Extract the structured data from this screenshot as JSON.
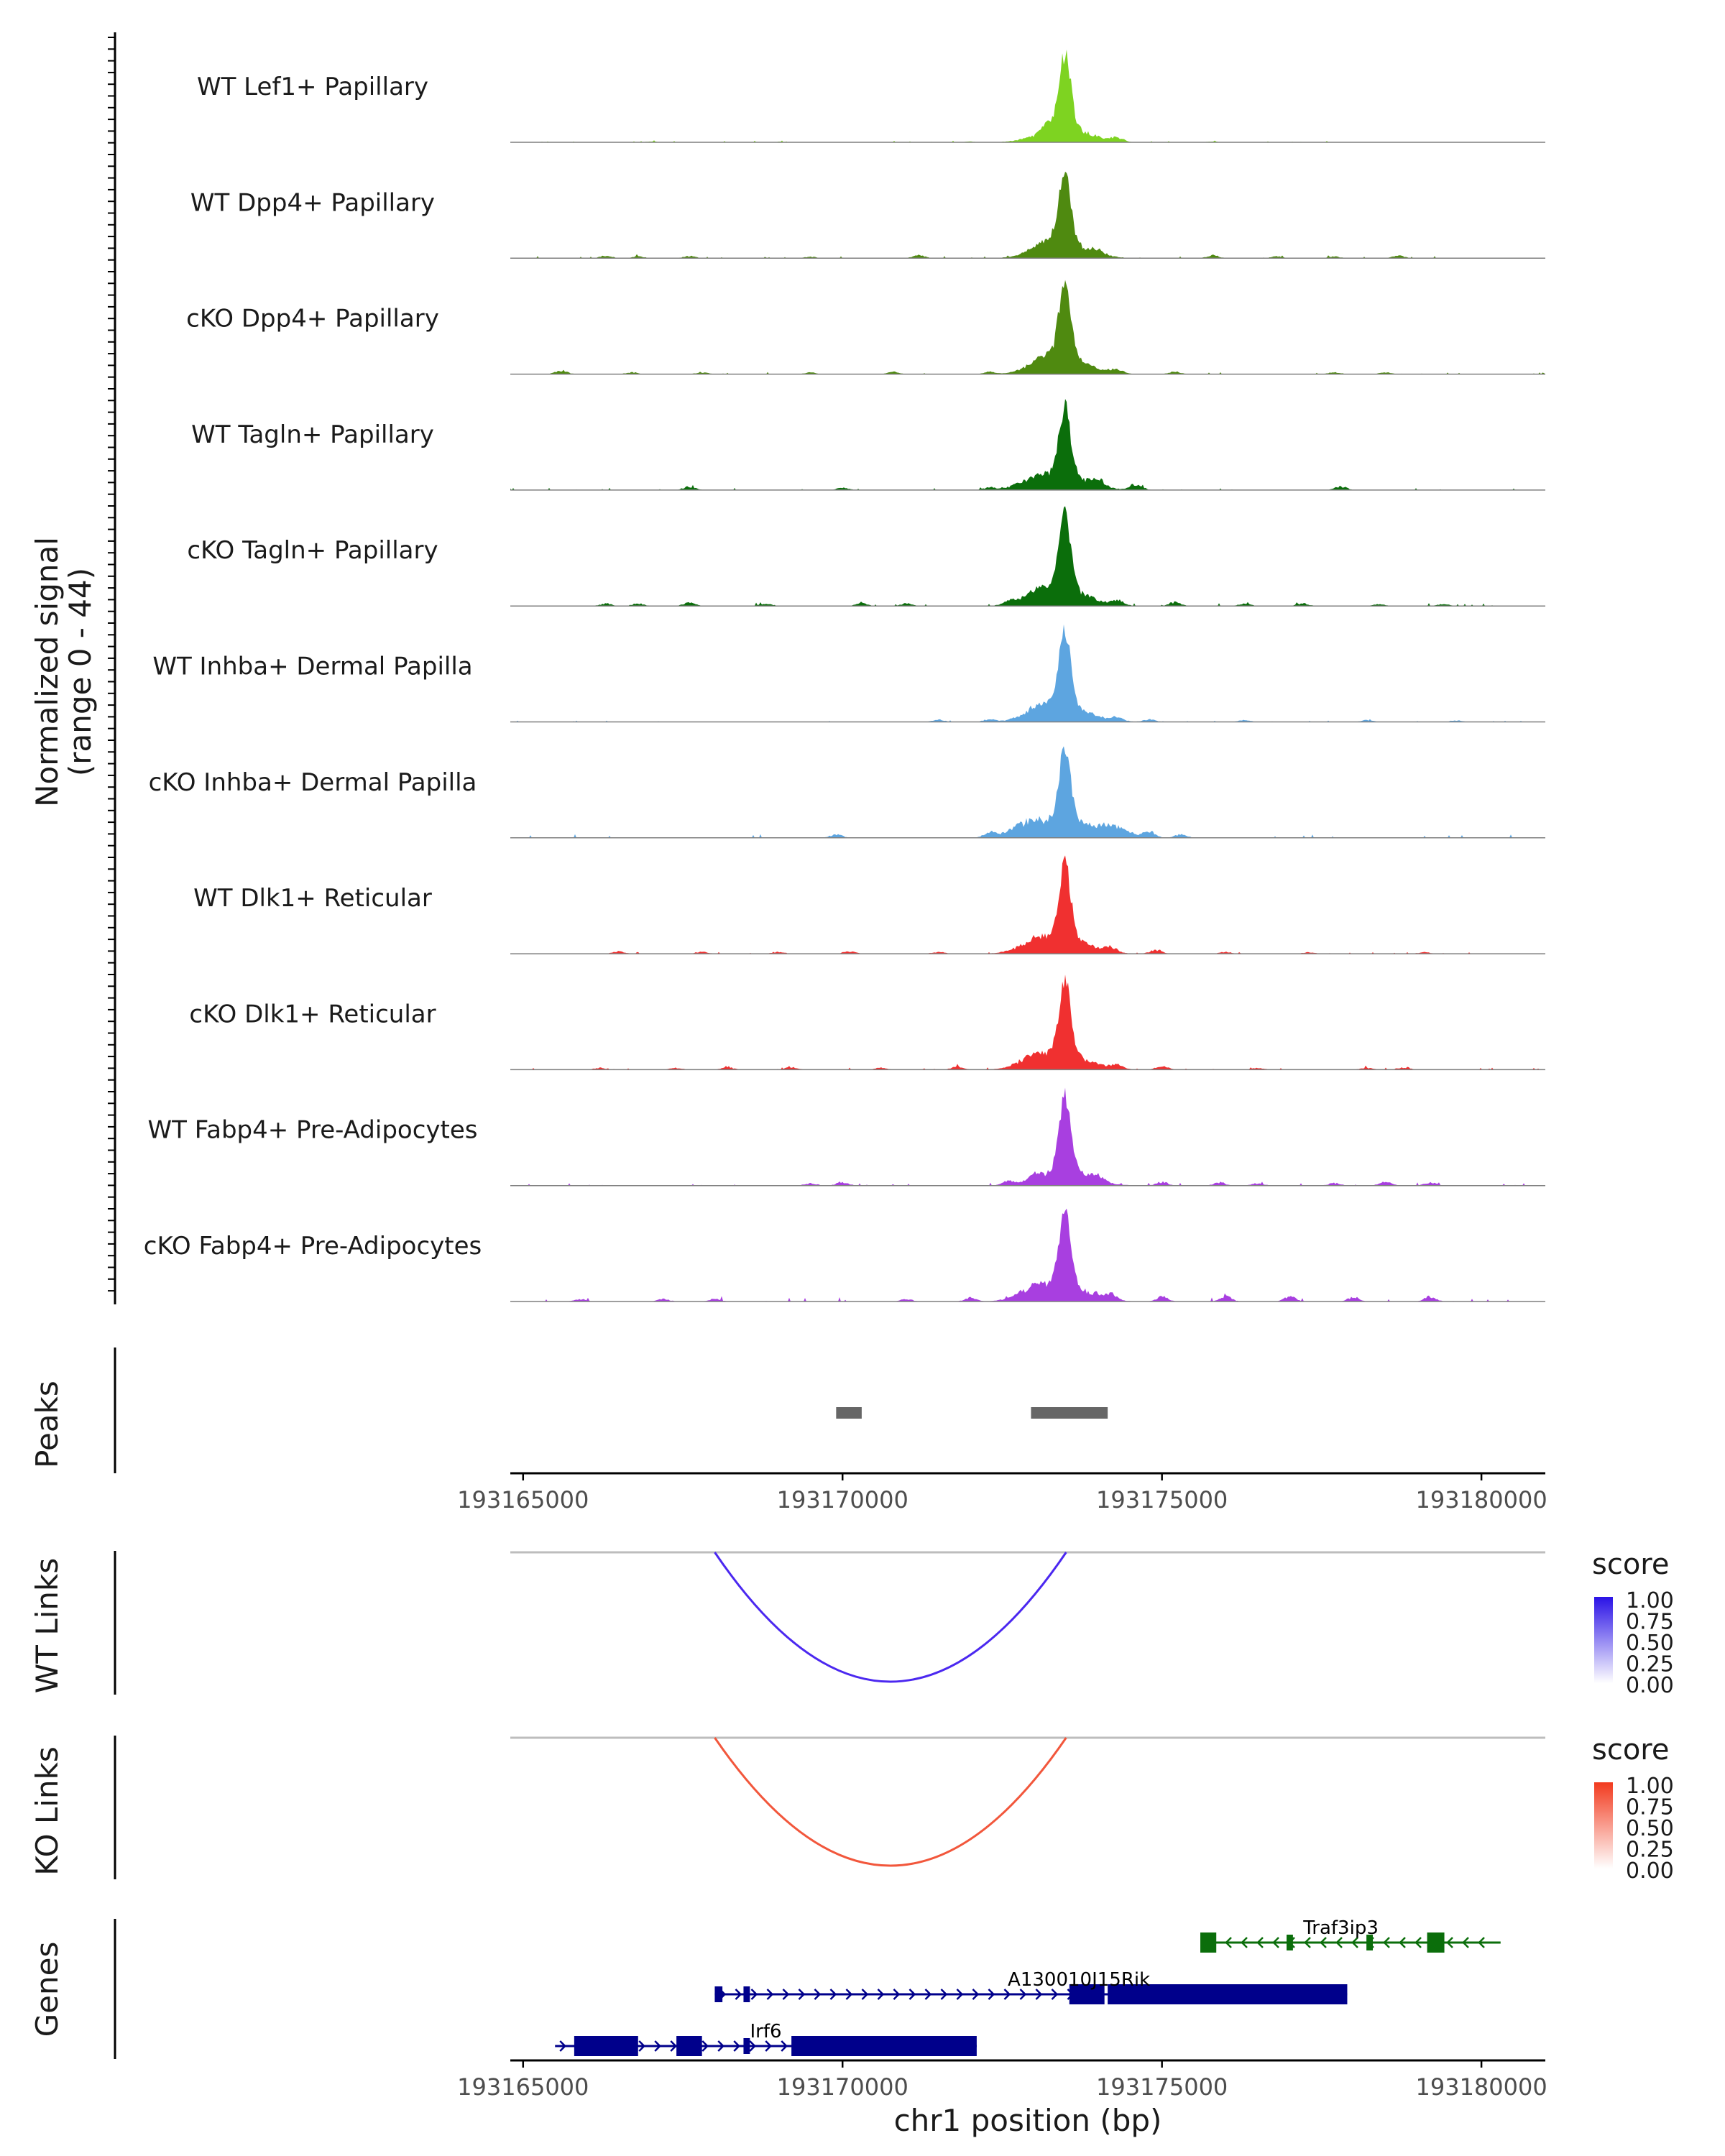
{
  "chart_data": {
    "type": "genome-browser",
    "region": {
      "chrom": "chr1",
      "start": 193164800,
      "end": 193181000
    },
    "coverage": {
      "ylabel_line1": "Normalized signal",
      "ylabel_line2": "(range 0 - 44)",
      "ylim": [
        0,
        44
      ],
      "tracks": [
        {
          "name": "WT Lef1+ Papillary",
          "color": "#7ED321",
          "peak": 44,
          "noise": 1.2,
          "bumps": [
            [
              193167000,
              0.6
            ],
            [
              193169000,
              0.5
            ],
            [
              193172000,
              0.6
            ],
            [
              193173200,
              5
            ],
            [
              193174300,
              3
            ],
            [
              193175800,
              0.6
            ]
          ]
        },
        {
          "name": "WT Dpp4+ Papillary",
          "color": "#4F8A10",
          "peak": 40,
          "noise": 1.5,
          "bumps": [
            [
              193166300,
              2
            ],
            [
              193166800,
              1.5
            ],
            [
              193167600,
              1.8
            ],
            [
              193169500,
              1.2
            ],
            [
              193171200,
              2.5
            ],
            [
              193173200,
              6
            ],
            [
              193174000,
              3
            ],
            [
              193175800,
              2.5
            ],
            [
              193176800,
              1.5
            ],
            [
              193177700,
              1.5
            ],
            [
              193178700,
              2
            ]
          ]
        },
        {
          "name": "cKO Dpp4+ Papillary",
          "color": "#4F8A10",
          "peak": 44,
          "noise": 1.5,
          "bumps": [
            [
              193165600,
              3
            ],
            [
              193166700,
              1.5
            ],
            [
              193167800,
              1.5
            ],
            [
              193169500,
              1.5
            ],
            [
              193170800,
              2
            ],
            [
              193172300,
              2
            ],
            [
              193173200,
              7
            ],
            [
              193174300,
              3
            ],
            [
              193175200,
              2
            ],
            [
              193177700,
              1.5
            ],
            [
              193178500,
              1.5
            ]
          ]
        },
        {
          "name": "WT Tagln+ Papillary",
          "color": "#0B6E0B",
          "peak": 40,
          "noise": 1.5,
          "bumps": [
            [
              193167600,
              3
            ],
            [
              193170000,
              2
            ],
            [
              193172300,
              2
            ],
            [
              193173000,
              6
            ],
            [
              193174000,
              5
            ],
            [
              193174600,
              5
            ],
            [
              193177800,
              3
            ]
          ]
        },
        {
          "name": "cKO Tagln+ Papillary",
          "color": "#0B6E0B",
          "peak": 44,
          "noise": 2.0,
          "bumps": [
            [
              193166300,
              2
            ],
            [
              193166800,
              2
            ],
            [
              193167600,
              3
            ],
            [
              193168800,
              2
            ],
            [
              193170300,
              2
            ],
            [
              193171000,
              2
            ],
            [
              193172600,
              3
            ],
            [
              193173100,
              8
            ],
            [
              193174300,
              4
            ],
            [
              193175200,
              3
            ],
            [
              193176300,
              2
            ],
            [
              193177200,
              2
            ],
            [
              193178400,
              1.5
            ],
            [
              193179400,
              1.5
            ]
          ]
        },
        {
          "name": "WT Inhba+ Dermal Papilla",
          "color": "#5DA5E0",
          "peak": 44,
          "noise": 1.0,
          "bumps": [
            [
              193171500,
              2
            ],
            [
              193172300,
              2
            ],
            [
              193173100,
              7
            ],
            [
              193174300,
              3
            ],
            [
              193174800,
              2
            ],
            [
              193176300,
              1.5
            ],
            [
              193178200,
              1.5
            ],
            [
              193179600,
              1.2
            ]
          ]
        },
        {
          "name": "cKO Inhba+ Dermal Papilla",
          "color": "#5DA5E0",
          "peak": 44,
          "noise": 3.0,
          "bumps": [
            [
              193169900,
              3
            ],
            [
              193172300,
              4
            ],
            [
              193172900,
              10
            ],
            [
              193174200,
              8
            ],
            [
              193174800,
              5
            ],
            [
              193175300,
              3
            ]
          ]
        },
        {
          "name": "WT Dlk1+ Reticular",
          "color": "#F03030",
          "peak": 44,
          "noise": 1.2,
          "bumps": [
            [
              193166500,
              2
            ],
            [
              193167800,
              1.5
            ],
            [
              193169000,
              1.5
            ],
            [
              193170100,
              2
            ],
            [
              193171500,
              1.5
            ],
            [
              193173000,
              7
            ],
            [
              193174200,
              4
            ],
            [
              193174900,
              3
            ],
            [
              193176000,
              1.5
            ],
            [
              193177300,
              1.2
            ],
            [
              193179100,
              1.2
            ]
          ]
        },
        {
          "name": "cKO Dlk1+ Reticular",
          "color": "#F03030",
          "peak": 44,
          "noise": 1.5,
          "bumps": [
            [
              193166200,
              1.5
            ],
            [
              193167400,
              1.5
            ],
            [
              193168200,
              2
            ],
            [
              193169200,
              2
            ],
            [
              193170600,
              1.5
            ],
            [
              193171800,
              2.5
            ],
            [
              193173000,
              7
            ],
            [
              193174300,
              3
            ],
            [
              193175000,
              3
            ],
            [
              193176500,
              1.5
            ],
            [
              193178200,
              1.5
            ],
            [
              193178800,
              2
            ]
          ]
        },
        {
          "name": "WT Fabp4+ Pre-Adipocytes",
          "color": "#A83FE0",
          "peak": 44,
          "noise": 2.0,
          "bumps": [
            [
              193169500,
              2
            ],
            [
              193170000,
              3
            ],
            [
              193172600,
              3
            ],
            [
              193173000,
              5
            ],
            [
              193174000,
              4
            ],
            [
              193175000,
              3
            ],
            [
              193175900,
              2.5
            ],
            [
              193176500,
              2
            ],
            [
              193177700,
              2
            ],
            [
              193178500,
              3
            ],
            [
              193179200,
              2.5
            ]
          ]
        },
        {
          "name": "cKO Fabp4+ Pre-Adipocytes",
          "color": "#A83FE0",
          "peak": 44,
          "noise": 3.0,
          "bumps": [
            [
              193165900,
              2
            ],
            [
              193167200,
              2
            ],
            [
              193168000,
              2
            ],
            [
              193171000,
              2
            ],
            [
              193172000,
              3
            ],
            [
              193173000,
              8
            ],
            [
              193174200,
              5
            ],
            [
              193175000,
              4
            ],
            [
              193176000,
              4
            ],
            [
              193177000,
              4
            ],
            [
              193178000,
              3.5
            ],
            [
              193179200,
              4
            ]
          ]
        }
      ]
    },
    "peaks": {
      "label": "Peaks",
      "color": "#666666",
      "ranges": [
        [
          193169900,
          193170300
        ],
        [
          193172950,
          193174150
        ]
      ]
    },
    "axis": {
      "ticks": [
        193165000,
        193170000,
        193175000,
        193180000
      ],
      "tick_labels": [
        "193165000",
        "193170000",
        "193175000",
        "193180000"
      ]
    },
    "links": [
      {
        "label": "WT Links",
        "color": "#4B28F0",
        "start": 193168000,
        "end": 193173500,
        "score": 1.0,
        "legend_title": "score",
        "legend_labels": [
          "1.00",
          "0.75",
          "0.50",
          "0.25",
          "0.00"
        ],
        "gradient_top": "#2A12E6"
      },
      {
        "label": "KO Links",
        "color": "#F2573C",
        "start": 193168000,
        "end": 193173500,
        "score": 1.0,
        "legend_title": "score",
        "legend_labels": [
          "1.00",
          "0.75",
          "0.50",
          "0.25",
          "0.00"
        ],
        "gradient_top": "#F23A1E"
      }
    ],
    "genes": {
      "label": "Genes",
      "xlabel": "chr1 position (bp)",
      "models": [
        {
          "name": "Traf3ip3",
          "color": "#0B6E0B",
          "strand": "-",
          "row": 0,
          "start": 193175600,
          "end": 193180300,
          "exons": [
            [
              193175600,
              193175850
            ],
            [
              193176950,
              193177050
            ],
            [
              193178200,
              193178300
            ],
            [
              193179150,
              193179420
            ]
          ]
        },
        {
          "name": "A130010J15Rik",
          "color": "#00008B",
          "strand": "+",
          "row": 1,
          "start": 193168000,
          "end": 193177900,
          "exons": [
            [
              193168000,
              193168120
            ],
            [
              193168450,
              193168550
            ],
            [
              193173550,
              193174100
            ],
            [
              193174150,
              193177900
            ]
          ]
        },
        {
          "name": "Irf6",
          "color": "#00008B",
          "strand": "+",
          "row": 2,
          "start": 193165500,
          "end": 193172100,
          "exons": [
            [
              193165800,
              193166800
            ],
            [
              193167400,
              193167800
            ],
            [
              193168450,
              193168550
            ],
            [
              193169200,
              193172100
            ]
          ]
        }
      ]
    }
  }
}
